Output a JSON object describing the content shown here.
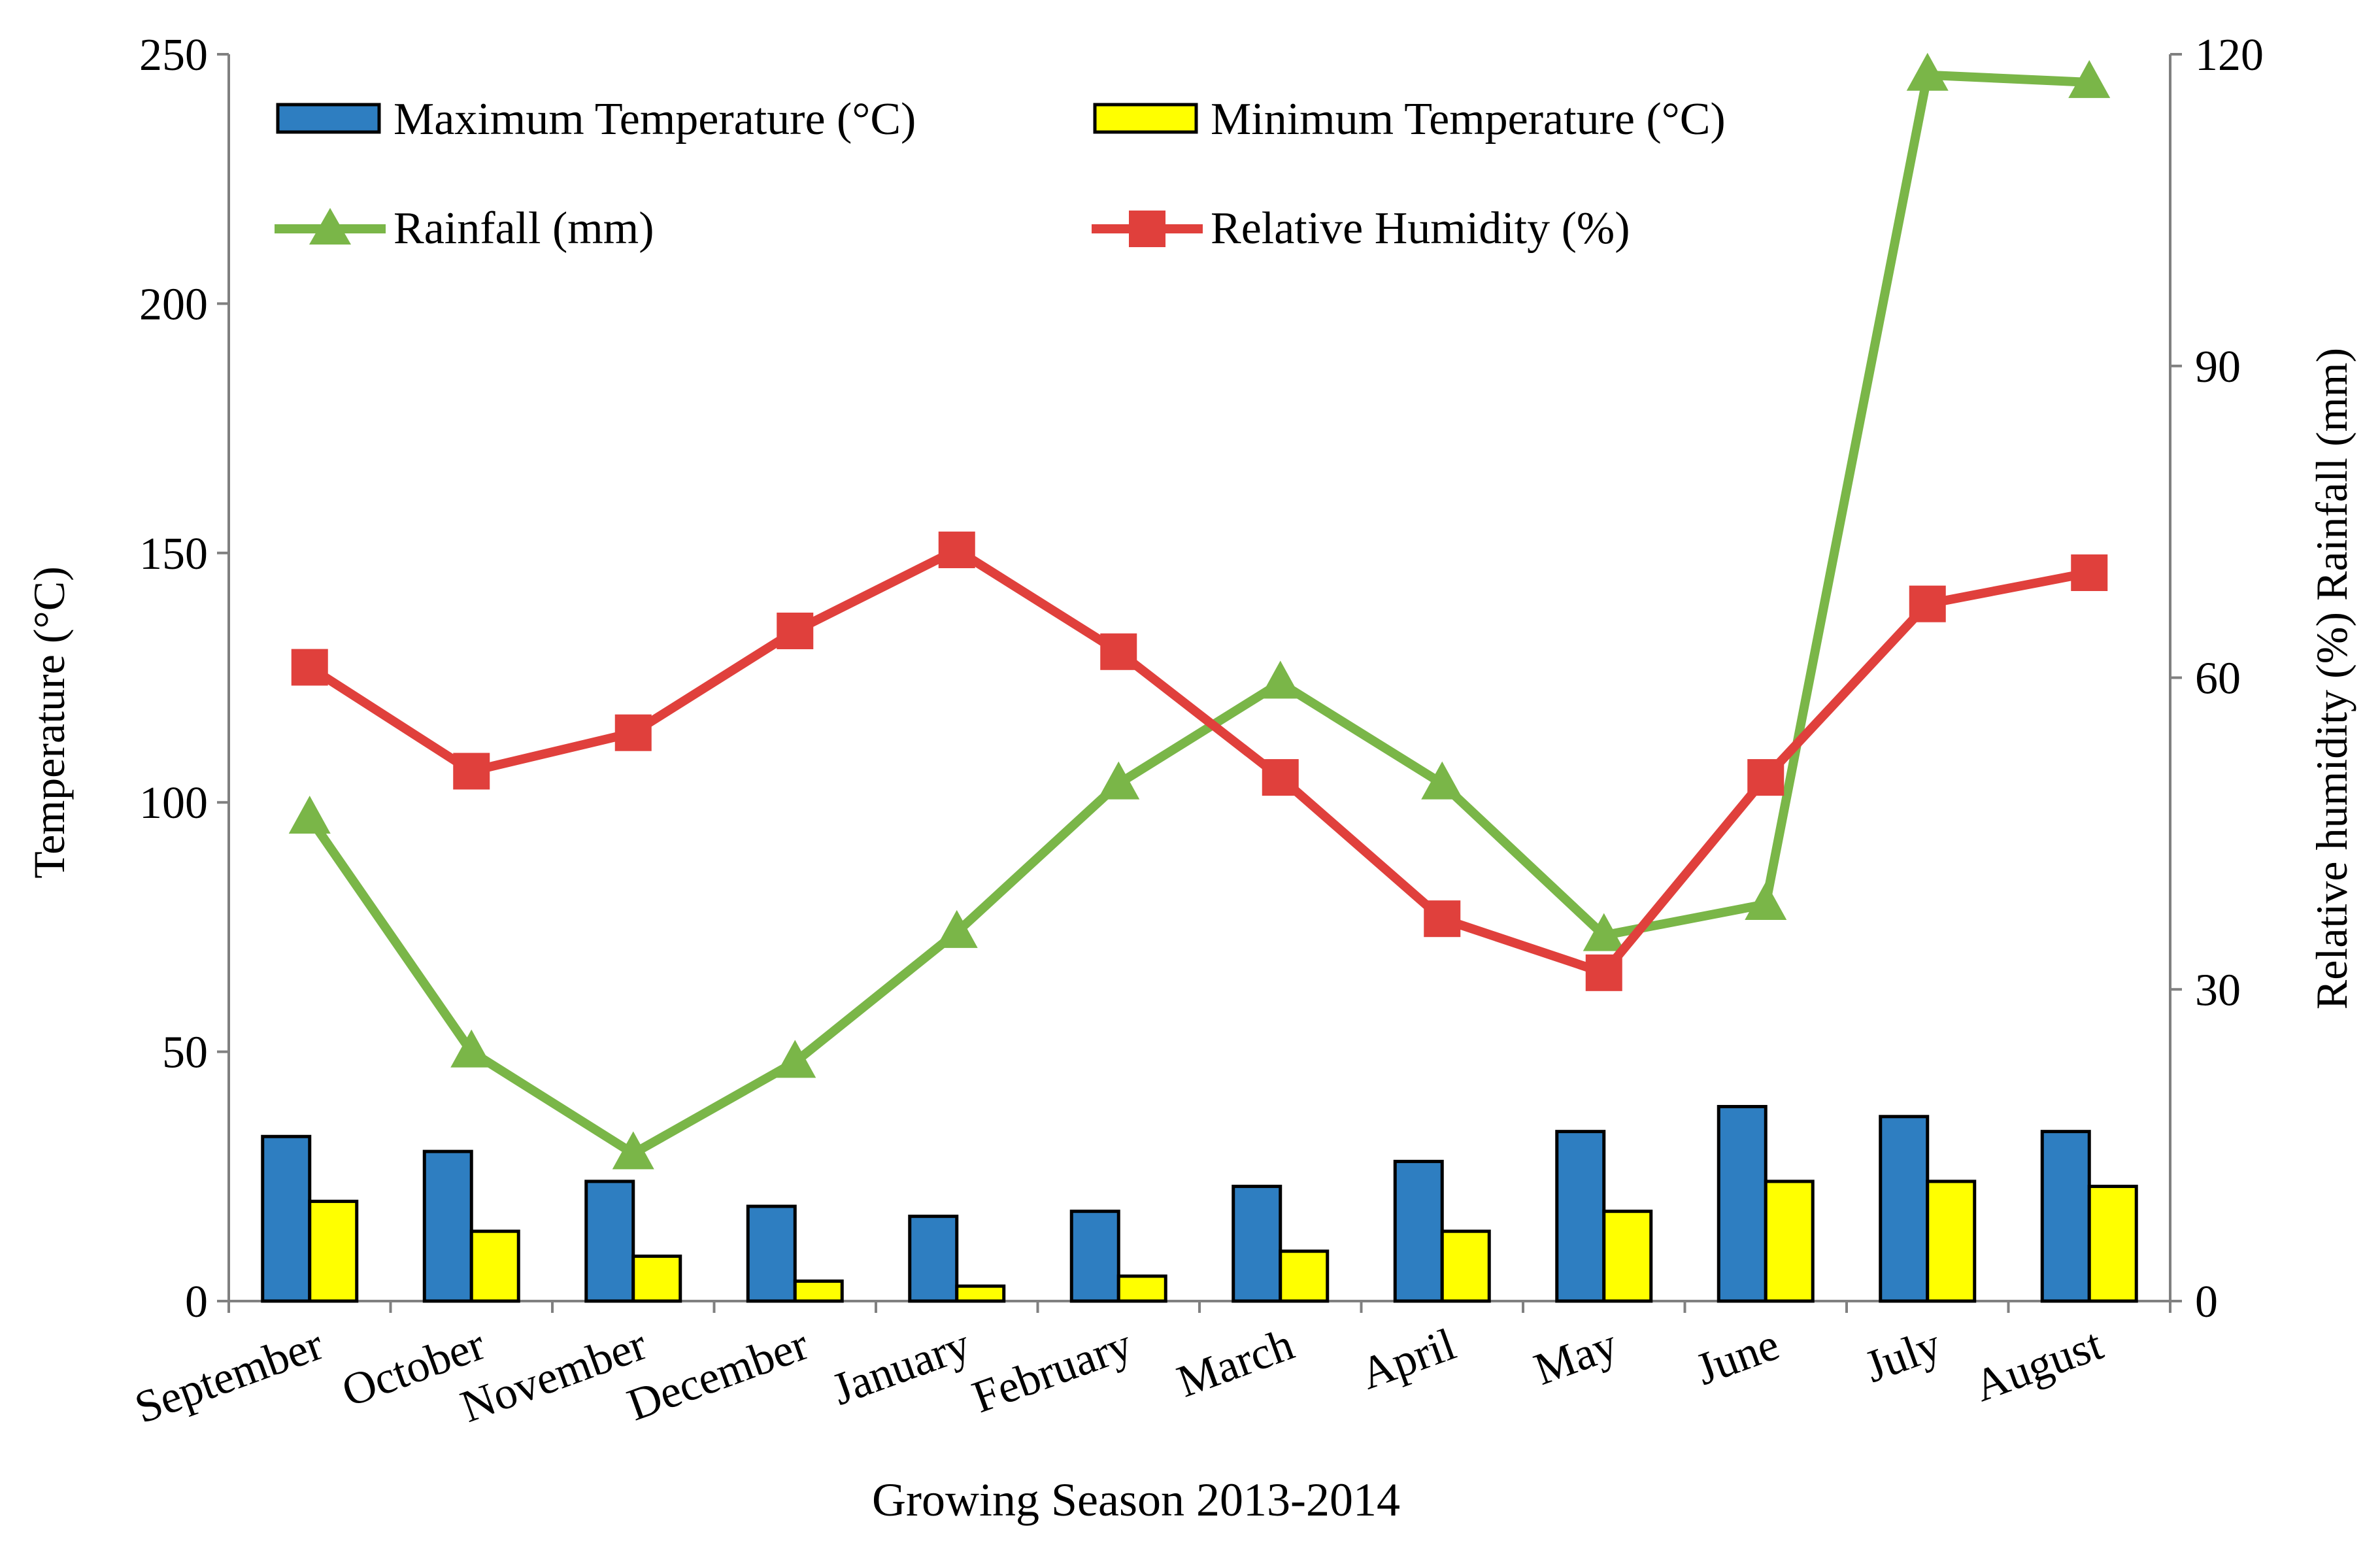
{
  "chart_data": {
    "type": "bar+line",
    "categories": [
      "September",
      "October",
      "November",
      "December",
      "January",
      "February",
      "March",
      "April",
      "May",
      "June",
      "July",
      "August"
    ],
    "xlabel": "Growing Season 2013-2014",
    "ylabel_left": "Temperature (°C)",
    "ylabel_right": "Relative humidity (%) Rainfall (mm)",
    "ylim_left": [
      0,
      250
    ],
    "yticks_left": [
      "0",
      "50",
      "100",
      "150",
      "200",
      "250"
    ],
    "ylim_right": [
      0,
      120
    ],
    "yticks_right": [
      "0",
      "30",
      "60",
      "90",
      "120"
    ],
    "legend_position": "top",
    "bar_series": [
      {
        "name": "Maximum Temperature (°C)",
        "color": "#2E7EC1",
        "axis": "left",
        "values": [
          33,
          30,
          24,
          19,
          17,
          18,
          23,
          28,
          34,
          39,
          37,
          34
        ]
      },
      {
        "name": "Minimum Temperature (°C)",
        "color": "#FFFF00",
        "axis": "left",
        "values": [
          20,
          14,
          9,
          4,
          3,
          5,
          10,
          14,
          18,
          24,
          24,
          23
        ]
      }
    ],
    "line_series": [
      {
        "name": "Rainfall (mm)",
        "color": "#7AB648",
        "marker": "triangle",
        "axis": "right",
        "values": [
          46.5,
          24,
          14.2,
          23,
          35.5,
          49.8,
          59.5,
          49.8,
          35.2,
          38.2,
          118,
          117.3
        ]
      },
      {
        "name": "Relative Humidity (%)",
        "color": "#E0403C",
        "marker": "square",
        "axis": "right",
        "values": [
          61,
          51,
          54.7,
          64.5,
          72.3,
          62.5,
          50.4,
          36.8,
          31.6,
          50.4,
          67.1,
          70.1
        ]
      }
    ]
  }
}
